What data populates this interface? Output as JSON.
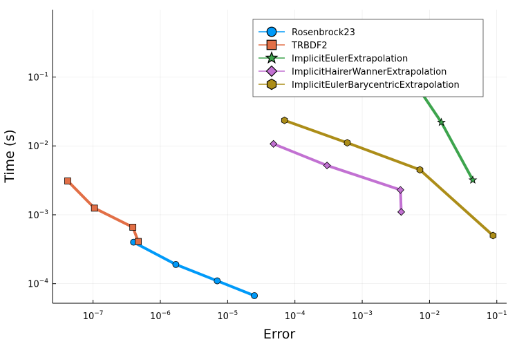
{
  "chart_data": {
    "type": "line",
    "xlabel": "Error",
    "ylabel": "Time (s)",
    "xscale": "log",
    "yscale": "log",
    "xlim": [
      2.5e-08,
      0.14
    ],
    "ylim": [
      5.2e-05,
      0.95
    ],
    "x_ticks": [
      {
        "base": "10",
        "exp": "−7",
        "value": 1e-07
      },
      {
        "base": "10",
        "exp": "−6",
        "value": 1e-06
      },
      {
        "base": "10",
        "exp": "−5",
        "value": 1e-05
      },
      {
        "base": "10",
        "exp": "−4",
        "value": 0.0001
      },
      {
        "base": "10",
        "exp": "−3",
        "value": 0.001
      },
      {
        "base": "10",
        "exp": "−2",
        "value": 0.01
      },
      {
        "base": "10",
        "exp": "−1",
        "value": 0.1
      }
    ],
    "y_ticks": [
      {
        "base": "10",
        "exp": "−4",
        "value": 0.0001
      },
      {
        "base": "10",
        "exp": "−3",
        "value": 0.001
      },
      {
        "base": "10",
        "exp": "−2",
        "value": 0.01
      },
      {
        "base": "10",
        "exp": "−1",
        "value": 0.1
      }
    ],
    "grid": true,
    "legend_position": "top-right",
    "series": [
      {
        "name": "Rosenbrock23",
        "color": "#009af9",
        "marker": "circle",
        "x": [
          4e-07,
          1.7e-06,
          7e-06,
          2.5e-05
        ],
        "y": [
          0.0004,
          0.00019,
          0.00011,
          6.7e-05
        ]
      },
      {
        "name": "TRBDF2",
        "color": "#e26f46",
        "marker": "square",
        "x": [
          4.2e-08,
          1.05e-07,
          3.9e-07,
          4.7e-07
        ],
        "y": [
          0.0031,
          0.00125,
          0.00066,
          0.00041
        ]
      },
      {
        "name": "ImplicitEulerExtrapolation",
        "color": "#3da44d",
        "marker": "star",
        "x": [
          0.0017,
          0.015,
          0.044
        ],
        "y": [
          0.52,
          0.022,
          0.0032
        ]
      },
      {
        "name": "ImplicitHairerWannerExtrapolation",
        "color": "#c271d2",
        "marker": "diamond",
        "x": [
          4.8e-05,
          0.0003,
          0.0037,
          0.0038
        ],
        "y": [
          0.0107,
          0.0052,
          0.0023,
          0.0011
        ]
      },
      {
        "name": "ImplicitEulerBarycentricExtrapolation",
        "color": "#ac8d18",
        "marker": "hexagon",
        "x": [
          7e-05,
          0.0006,
          0.0072,
          0.088
        ],
        "y": [
          0.0235,
          0.0111,
          0.0045,
          0.0005
        ]
      }
    ]
  }
}
